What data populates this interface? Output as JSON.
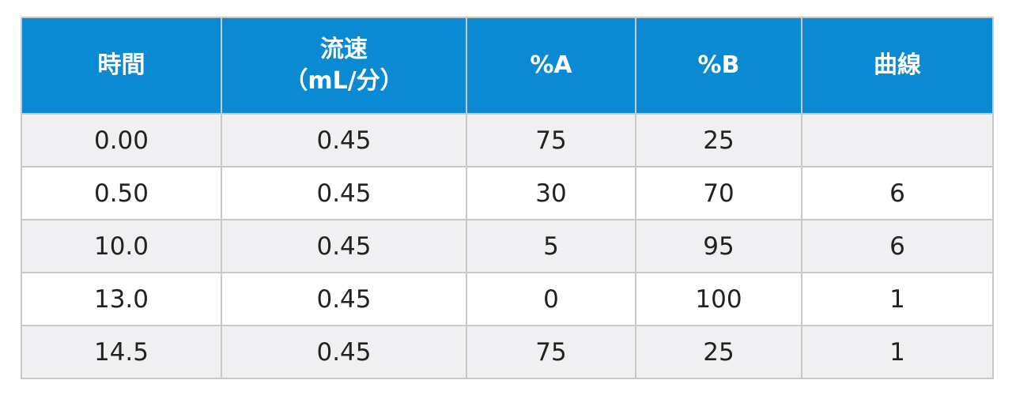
{
  "table": {
    "headers": {
      "time": "時間",
      "flow_line1": "流速",
      "flow_line2": "（mL/分）",
      "pct_a": "%A",
      "pct_b": "%B",
      "curve": "曲線"
    },
    "rows": [
      {
        "time": "0.00",
        "flow": "0.45",
        "a": "75",
        "b": "25",
        "curve": ""
      },
      {
        "time": "0.50",
        "flow": "0.45",
        "a": "30",
        "b": "70",
        "curve": "6"
      },
      {
        "time": "10.0",
        "flow": "0.45",
        "a": "5",
        "b": "95",
        "curve": "6"
      },
      {
        "time": "13.0",
        "flow": "0.45",
        "a": "0",
        "b": "100",
        "curve": "1"
      },
      {
        "time": "14.5",
        "flow": "0.45",
        "a": "75",
        "b": "25",
        "curve": "1"
      }
    ]
  },
  "colors": {
    "header_bg": "#0a8ad2",
    "header_text": "#ffffff",
    "row_alt_bg": "#f0f0f3",
    "border": "#c9c9c9"
  }
}
